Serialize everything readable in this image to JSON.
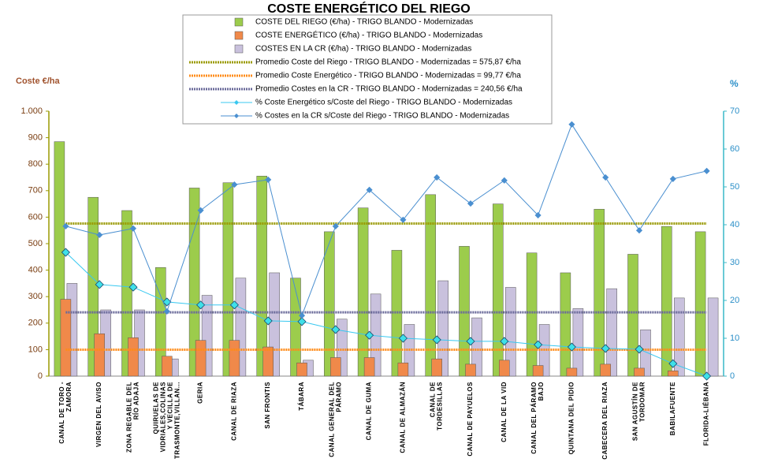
{
  "chart_data": {
    "type": "combo",
    "title": "COSTE ENERGÉTICO DEL RIEGO",
    "y_label": "Coste €/ha",
    "y2_label": "%",
    "categories": [
      "CANAL DE TORO - ZAMORA",
      "VIRGEN DEL AVISO",
      "ZONA REGABLE DEL RÍO ADAJA",
      "QUIRUELAS DE VIDRIALES,COLINAS Y VECILLA DE TRASMONTE,VILLAN...",
      "GERIA",
      "CANAL DE RIAZA",
      "SAN FRONTIS",
      "TÁBARA",
      "CANAL GENERAL DEL PÁRAMO",
      "CANAL DE GUMA",
      "CANAL DE ALMAZÁN",
      "CANAL DE TORDESILLAS",
      "CANAL DE PAYUELOS",
      "CANAL DE LA VID",
      "CANAL DEL PÁRAMO BAJO",
      "QUINTANA DEL PIDIO",
      "CABECERA DEL RIAZA",
      "SAN AGUSTÍN DE TORDOMAR",
      "BABILAFUENTE",
      "FLORIDA-LIÉBANA"
    ],
    "series": [
      {
        "name": "COSTE DEL RIEGO (€/ha) - TRIGO BLANDO - Modernizadas",
        "type": "bar",
        "color": "#9ccc4c",
        "values": [
          885,
          675,
          625,
          410,
          710,
          730,
          755,
          370,
          545,
          635,
          475,
          685,
          490,
          650,
          465,
          390,
          630,
          460,
          565,
          545
        ]
      },
      {
        "name": "COSTE ENERGÉTICO (€/ha) - TRIGO BLANDO - Modernizadas",
        "type": "bar",
        "color": "#f0894a",
        "values": [
          290,
          160,
          145,
          75,
          135,
          135,
          110,
          50,
          70,
          70,
          50,
          65,
          45,
          60,
          40,
          30,
          45,
          30,
          20,
          0
        ]
      },
      {
        "name": "COSTES EN LA CR (€/ha) - TRIGO BLANDO - Modernizadas",
        "type": "bar",
        "color": "#c9c1dd",
        "values": [
          350,
          250,
          250,
          65,
          305,
          370,
          390,
          60,
          215,
          310,
          195,
          360,
          220,
          335,
          195,
          255,
          330,
          175,
          295,
          295
        ]
      },
      {
        "name": "Promedio Coste del Riego - TRIGO BLANDO - Modernizadas = 575,87 €/ha",
        "type": "average",
        "color": "#9a9a00",
        "value": 575.87
      },
      {
        "name": "Promedio Coste Energético - TRIGO BLANDO - Modernizadas = 99,77 €/ha",
        "type": "average",
        "color": "#ff8c1a",
        "value": 99.77
      },
      {
        "name": "Promedio Costes en la CR - TRIGO BLANDO - Modernizadas = 240,56 €/ha",
        "type": "average",
        "color": "#6a6a9a",
        "value": 240.56
      },
      {
        "name": "% Coste Energético s/Coste del Riego - TRIGO BLANDO - Modernizadas",
        "type": "line",
        "axis": "y2",
        "color": "#38c8f0",
        "values": [
          32.7,
          24.2,
          23.5,
          19.6,
          18.8,
          18.8,
          14.6,
          14.4,
          12.3,
          10.8,
          10.0,
          9.6,
          9.2,
          9.2,
          8.3,
          7.7,
          7.3,
          7.1,
          3.3,
          0
        ]
      },
      {
        "name": "% Costes en la CR s/Coste del Riego - TRIGO BLANDO - Modernizadas",
        "type": "line",
        "axis": "y2",
        "color": "#4a8fd0",
        "values": [
          39.6,
          37.3,
          39.0,
          17.1,
          43.8,
          50.6,
          51.9,
          16.0,
          39.6,
          49.2,
          41.3,
          52.5,
          45.6,
          51.7,
          42.5,
          66.5,
          52.5,
          38.5,
          52.1,
          54.2
        ]
      }
    ],
    "ylim": [
      0,
      1000
    ],
    "yticks": [
      0,
      100,
      200,
      300,
      400,
      500,
      600,
      700,
      800,
      900,
      {
        "value": 1000,
        "label": "1.000"
      }
    ],
    "y2lim": [
      0,
      70
    ],
    "y2ticks": [
      0,
      10,
      20,
      30,
      40,
      50,
      60,
      70
    ],
    "legend": "top"
  }
}
